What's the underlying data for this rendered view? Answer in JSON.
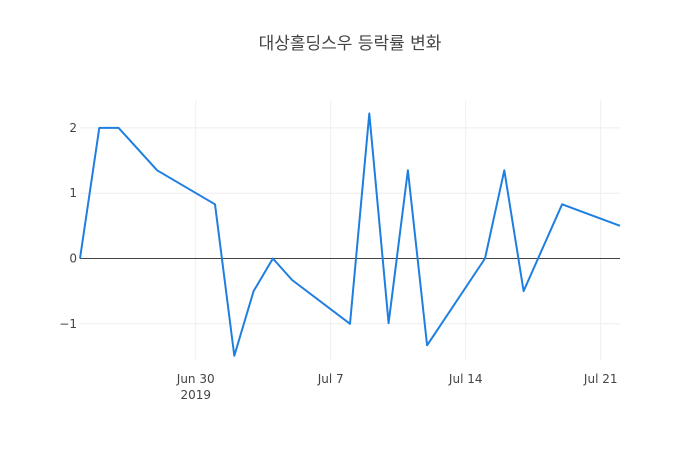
{
  "chart_data": {
    "type": "line",
    "title": "대상홀딩스우 등락률 변화",
    "xlabel": "",
    "ylabel": "",
    "x": [
      "2019-06-24",
      "2019-06-25",
      "2019-06-26",
      "2019-06-28",
      "2019-07-01",
      "2019-07-02",
      "2019-07-03",
      "2019-07-04",
      "2019-07-05",
      "2019-07-08",
      "2019-07-09",
      "2019-07-10",
      "2019-07-11",
      "2019-07-12",
      "2019-07-15",
      "2019-07-16",
      "2019-07-17",
      "2019-07-19",
      "2019-07-22"
    ],
    "series": [
      {
        "name": "등락률",
        "color": "#1f7fe0",
        "values": [
          0,
          2.0,
          2.0,
          1.35,
          0.83,
          -1.49,
          -0.5,
          0,
          -0.33,
          -1.0,
          2.22,
          -0.99,
          1.35,
          -1.33,
          0,
          1.35,
          -0.5,
          0.83,
          0.5
        ]
      }
    ],
    "x_ticks": [
      {
        "date": "2019-06-30",
        "label": "Jun 30",
        "sublabel": "2019"
      },
      {
        "date": "2019-07-07",
        "label": "Jul 7",
        "sublabel": ""
      },
      {
        "date": "2019-07-14",
        "label": "Jul 14",
        "sublabel": ""
      },
      {
        "date": "2019-07-21",
        "label": "Jul 21",
        "sublabel": ""
      }
    ],
    "y_ticks": [
      {
        "value": 2,
        "label": "2"
      },
      {
        "value": 1,
        "label": "1"
      },
      {
        "value": 0,
        "label": "0"
      },
      {
        "value": -1,
        "label": "−1"
      }
    ],
    "xlim": [
      "2019-06-24",
      "2019-07-22"
    ],
    "ylim": [
      -1.6,
      2.45
    ],
    "grid": true,
    "legend": false
  }
}
